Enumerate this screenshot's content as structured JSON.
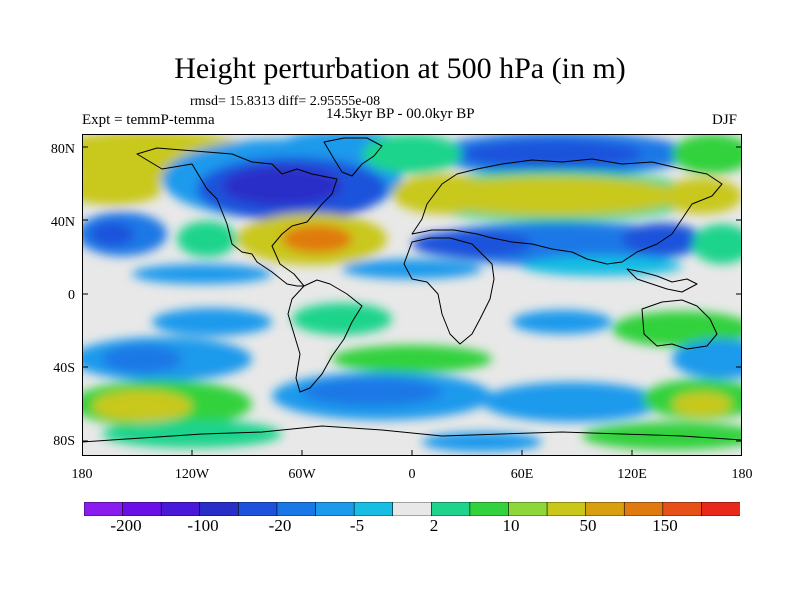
{
  "title": "Height perturbation at 500 hPa (in m)",
  "stats": "rmsd= 15.8313 diff= 2.95555e-08",
  "experiment": "Expt = temmP-temma",
  "period": "14.5kyr BP - 00.0kyr BP",
  "season": "DJF",
  "map": {
    "lat_ticks": [
      "80N",
      "40N",
      "0",
      "40S",
      "80S"
    ],
    "lon_ticks": [
      "180",
      "120W",
      "60W",
      "0",
      "60E",
      "120E",
      "180"
    ],
    "coastline_color": "#000000"
  },
  "colorbar": {
    "levels_shown": [
      "-200",
      "-100",
      "-20",
      "-5",
      "2",
      "10",
      "50",
      "150"
    ],
    "colors": [
      "#8a1cf0",
      "#6a10e6",
      "#4a18d8",
      "#2a2ec8",
      "#1f52dc",
      "#1a78e6",
      "#1e9aec",
      "#18bde4",
      "#e8e8e8",
      "#1ed48c",
      "#32d23c",
      "#8fd63a",
      "#c9c81a",
      "#d8a010",
      "#e07a10",
      "#e8501a",
      "#e8281a"
    ]
  },
  "palette": {
    "neutral": "#e8e8e8",
    "deep_blue": "#2a2ec8",
    "blue": "#1f52dc",
    "mid_blue": "#1a78e6",
    "light_blue": "#1e9aec",
    "cyan": "#18bde4",
    "teal_green": "#1ed48c",
    "green": "#32d23c",
    "yellow_green": "#8fd63a",
    "olive": "#c9c81a",
    "orange": "#d8a010",
    "dark_orange": "#e07a10"
  }
}
